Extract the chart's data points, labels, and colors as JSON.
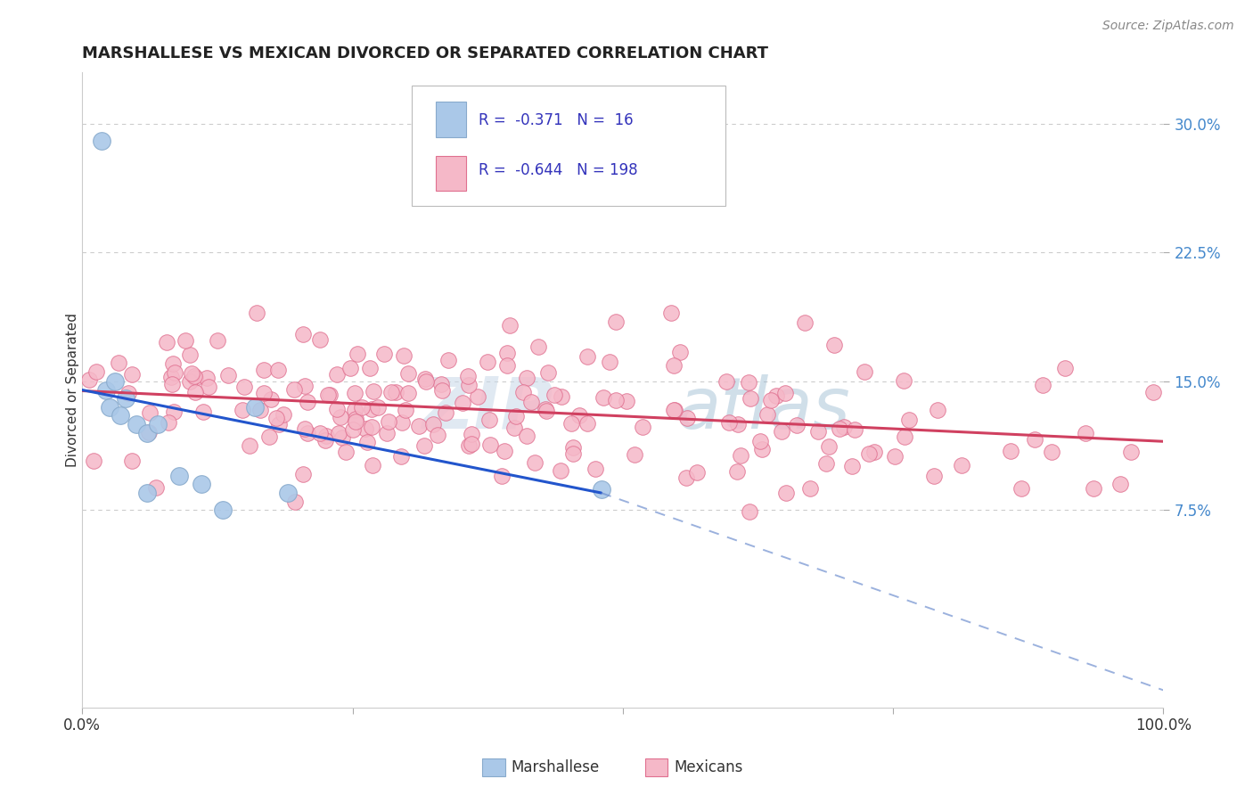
{
  "title": "MARSHALLESE VS MEXICAN DIVORCED OR SEPARATED CORRELATION CHART",
  "source": "Source: ZipAtlas.com",
  "ylabel": "Divorced or Separated",
  "xlim": [
    0,
    1.0
  ],
  "ylim": [
    -0.04,
    0.33
  ],
  "ytick_vals": [
    0.075,
    0.15,
    0.225,
    0.3
  ],
  "ytick_labels": [
    "7.5%",
    "15.0%",
    "22.5%",
    "30.0%"
  ],
  "xtick_vals": [
    0.0,
    0.25,
    0.5,
    0.75,
    1.0
  ],
  "xtick_labels": [
    "0.0%",
    "",
    "",
    "",
    "100.0%"
  ],
  "marshallese": {
    "R": -0.371,
    "N": 16,
    "color": "#aac8e8",
    "edge_color": "#88aacc",
    "label": "Marshallese",
    "x": [
      0.018,
      0.022,
      0.025,
      0.03,
      0.035,
      0.04,
      0.05,
      0.06,
      0.07,
      0.09,
      0.11,
      0.13,
      0.16,
      0.19,
      0.48,
      0.06
    ],
    "y": [
      0.29,
      0.145,
      0.135,
      0.15,
      0.13,
      0.14,
      0.125,
      0.12,
      0.125,
      0.095,
      0.09,
      0.075,
      0.135,
      0.085,
      0.087,
      0.085
    ]
  },
  "mexicans": {
    "R": -0.644,
    "N": 198,
    "color": "#f5b8c8",
    "edge_color": "#e07090",
    "label": "Mexicans",
    "trend_x0": 0.0,
    "trend_y0": 0.1445,
    "trend_x1": 1.0,
    "trend_y1": 0.115
  },
  "blue_trend": {
    "solid_x0": 0.0,
    "solid_y0": 0.145,
    "solid_x1": 0.48,
    "solid_y1": 0.085,
    "dash_x1": 1.0,
    "dash_y1": -0.03,
    "color": "#2255cc",
    "dash_color": "#6688cc"
  },
  "grid_yticks": [
    0.075,
    0.15,
    0.225,
    0.3
  ],
  "watermark_zip": "ZIP",
  "watermark_atlas": "atlas",
  "background_color": "#ffffff",
  "grid_color": "#cccccc",
  "legend_box": {
    "blue_color": "#aac8e8",
    "blue_edge": "#88aacc",
    "pink_color": "#f5b8c8",
    "pink_edge": "#e07090",
    "R1": "-0.371",
    "N1": "16",
    "R2": "-0.644",
    "N2": "198",
    "text_color": "#3333bb"
  }
}
